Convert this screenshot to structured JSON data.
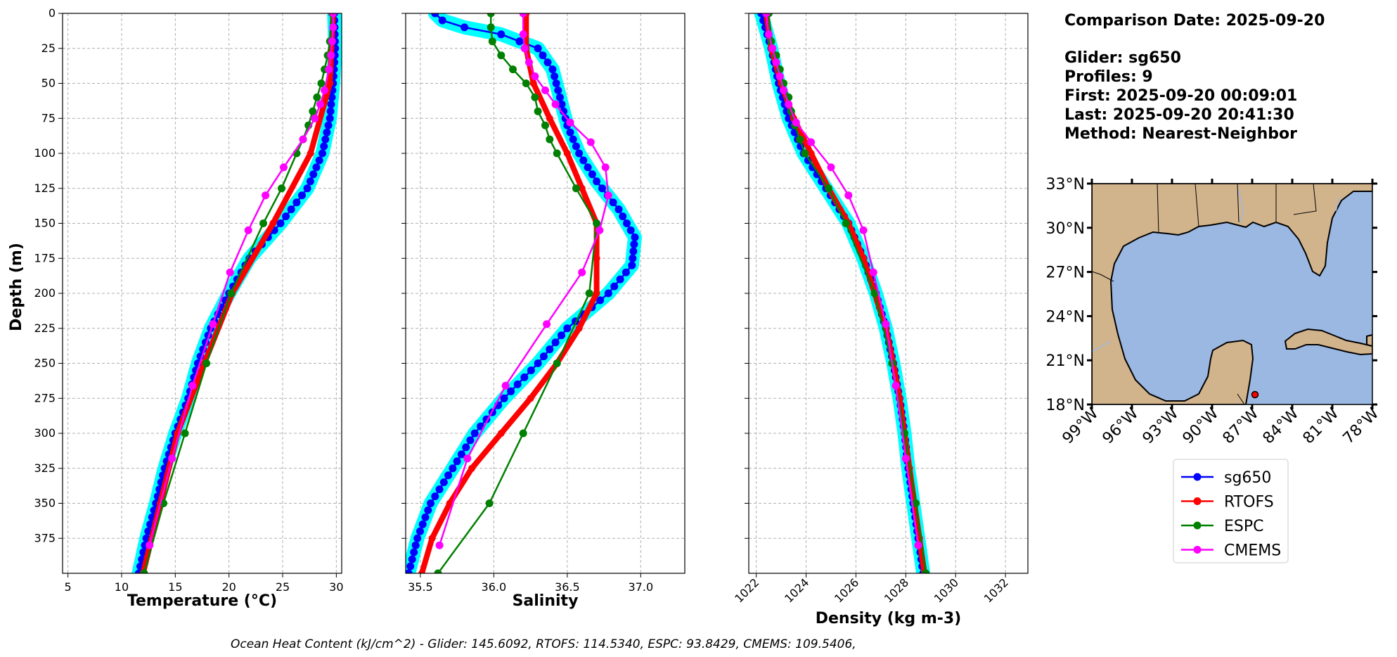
{
  "info": {
    "lines": [
      "Comparison Date: 2025-09-20",
      "Glider: sg650",
      "Profiles: 9",
      "First: 2025-09-20 00:09:01",
      "Last: 2025-09-20 20:41:30",
      "Method: Nearest-Neighbor"
    ]
  },
  "footer": "Ocean Heat Content (kJ/cm^2) - Glider: 145.6092,  RTOFS: 114.5340,  ESPC: 93.8429,  CMEMS: 109.5406,",
  "colors": {
    "sg650": "#0000ff",
    "RTOFS": "#ff0000",
    "ESPC": "#008000",
    "CMEMS": "#ff00ff",
    "envelope": "#00ffff",
    "land": "#d2b48c",
    "ocean": "#9bb8e2"
  },
  "legend": [
    "sg650",
    "RTOFS",
    "ESPC",
    "CMEMS"
  ],
  "map": {
    "lat_labels": [
      "33°N",
      "30°N",
      "27°N",
      "24°N",
      "21°N",
      "18°N"
    ],
    "lon_labels": [
      "99°W",
      "96°W",
      "93°W",
      "90°W",
      "87°W",
      "84°W",
      "81°W",
      "78°W"
    ],
    "lat_range": [
      18,
      33
    ],
    "lon_range": [
      -99,
      -78
    ],
    "glider_position": {
      "lon": -87.1,
      "lat": 18.8
    }
  },
  "chart_data": [
    {
      "type": "line",
      "xlabel": "Temperature (°C)",
      "ylabel": "Depth (m)",
      "xlim": [
        4.5,
        30.5
      ],
      "ylim": [
        400,
        0
      ],
      "xticks": [
        5,
        10,
        15,
        20,
        25,
        30
      ],
      "yticks": [
        0,
        25,
        50,
        75,
        100,
        125,
        150,
        175,
        200,
        225,
        250,
        275,
        300,
        325,
        350,
        375
      ],
      "grid": true,
      "series": [
        {
          "name": "sg650",
          "depth": [
            0,
            25,
            50,
            75,
            100,
            125,
            150,
            175,
            200,
            225,
            250,
            275,
            300,
            325,
            350,
            375,
            400
          ],
          "values": [
            29.8,
            29.9,
            29.7,
            29.4,
            28.7,
            27.3,
            24.8,
            21.9,
            20.0,
            18.3,
            17.1,
            16.2,
            15.0,
            14.0,
            13.2,
            12.3,
            11.6
          ]
        },
        {
          "name": "RTOFS",
          "depth": [
            0,
            50,
            100,
            150,
            200,
            250,
            300,
            350,
            400
          ],
          "values": [
            29.7,
            29.4,
            27.6,
            24.1,
            20.3,
            17.7,
            15.2,
            13.6,
            12.0
          ]
        },
        {
          "name": "ESPC",
          "depth": [
            0,
            20,
            30,
            40,
            50,
            60,
            70,
            80,
            90,
            100,
            125,
            150,
            200,
            250,
            300,
            350,
            400
          ],
          "values": [
            29.6,
            29.4,
            29.2,
            28.9,
            28.6,
            28.2,
            27.8,
            27.4,
            26.9,
            26.3,
            24.9,
            23.2,
            20.2,
            17.9,
            15.9,
            13.9,
            12.1
          ]
        },
        {
          "name": "CMEMS",
          "depth": [
            0,
            10,
            20,
            30,
            40,
            55,
            65,
            75,
            90,
            110,
            130,
            155,
            185,
            222,
            266,
            318,
            380
          ],
          "values": [
            29.7,
            29.7,
            29.6,
            29.5,
            29.3,
            28.9,
            28.5,
            28.0,
            26.9,
            25.1,
            23.4,
            21.8,
            20.1,
            18.5,
            16.6,
            14.7,
            12.6
          ]
        }
      ]
    },
    {
      "type": "line",
      "xlabel": "Salinity",
      "xlim": [
        35.4,
        37.3
      ],
      "ylim": [
        400,
        0
      ],
      "xticks": [
        35.5,
        36.0,
        36.5,
        37.0
      ],
      "grid": true,
      "series": [
        {
          "name": "sg650",
          "depth": [
            0,
            5,
            10,
            15,
            25,
            40,
            60,
            80,
            100,
            120,
            140,
            160,
            180,
            200,
            225,
            250,
            275,
            300,
            325,
            350,
            375,
            400
          ],
          "values": [
            35.6,
            35.65,
            35.8,
            36.05,
            36.3,
            36.4,
            36.45,
            36.5,
            36.58,
            36.7,
            36.85,
            36.96,
            36.94,
            36.78,
            36.5,
            36.3,
            36.07,
            35.87,
            35.72,
            35.57,
            35.48,
            35.42
          ]
        },
        {
          "name": "RTOFS",
          "depth": [
            0,
            25,
            50,
            75,
            100,
            125,
            150,
            175,
            200,
            225,
            250,
            275,
            300,
            325,
            350,
            375,
            400
          ],
          "values": [
            36.22,
            36.22,
            36.27,
            36.38,
            36.5,
            36.6,
            36.7,
            36.7,
            36.7,
            36.58,
            36.43,
            36.25,
            36.05,
            35.85,
            35.7,
            35.58,
            35.51
          ]
        },
        {
          "name": "ESPC",
          "depth": [
            0,
            10,
            20,
            30,
            40,
            50,
            60,
            70,
            80,
            90,
            100,
            125,
            150,
            200,
            250,
            300,
            350,
            400
          ],
          "values": [
            35.98,
            35.98,
            35.99,
            36.05,
            36.13,
            36.22,
            36.28,
            36.3,
            36.35,
            36.38,
            36.43,
            36.56,
            36.7,
            36.65,
            36.43,
            36.2,
            35.97,
            35.62
          ]
        },
        {
          "name": "CMEMS",
          "depth": [
            0,
            15,
            25,
            35,
            45,
            55,
            65,
            78,
            92,
            110,
            130,
            155,
            185,
            222,
            266,
            318,
            380
          ],
          "values": [
            36.2,
            36.2,
            36.21,
            36.24,
            36.28,
            36.35,
            36.42,
            36.52,
            36.66,
            36.76,
            36.78,
            36.72,
            36.6,
            36.36,
            36.08,
            35.82,
            35.63
          ]
        }
      ]
    },
    {
      "type": "line",
      "xlabel": "Density (kg m-3)",
      "xlim": [
        1021.7,
        1032.9
      ],
      "ylim": [
        400,
        0
      ],
      "xticks": [
        1022,
        1024,
        1026,
        1028,
        1030,
        1032
      ],
      "grid": true,
      "series": [
        {
          "name": "sg650",
          "depth": [
            0,
            25,
            50,
            75,
            100,
            125,
            150,
            175,
            200,
            225,
            250,
            275,
            300,
            325,
            350,
            375,
            400
          ],
          "values": [
            1022.2,
            1022.6,
            1022.9,
            1023.3,
            1023.9,
            1024.8,
            1025.7,
            1026.3,
            1026.8,
            1027.2,
            1027.5,
            1027.75,
            1027.95,
            1028.1,
            1028.3,
            1028.5,
            1028.7
          ]
        },
        {
          "name": "RTOFS",
          "depth": [
            0,
            25,
            50,
            75,
            100,
            125,
            150,
            175,
            200,
            225,
            250,
            275,
            300,
            325,
            350,
            375,
            400
          ],
          "values": [
            1022.4,
            1022.6,
            1023.0,
            1023.5,
            1024.2,
            1024.9,
            1025.7,
            1026.3,
            1026.75,
            1027.2,
            1027.5,
            1027.75,
            1027.95,
            1028.15,
            1028.35,
            1028.55,
            1028.75
          ]
        },
        {
          "name": "ESPC",
          "depth": [
            0,
            20,
            30,
            40,
            50,
            60,
            70,
            80,
            90,
            100,
            125,
            150,
            200,
            250,
            300,
            350,
            400
          ],
          "values": [
            1022.5,
            1022.6,
            1022.8,
            1022.95,
            1023.1,
            1023.3,
            1023.4,
            1023.55,
            1023.75,
            1023.95,
            1024.9,
            1025.6,
            1026.75,
            1027.45,
            1027.95,
            1028.4,
            1028.8
          ]
        },
        {
          "name": "CMEMS",
          "depth": [
            0,
            15,
            25,
            35,
            45,
            55,
            65,
            78,
            92,
            110,
            130,
            155,
            185,
            222,
            266,
            318,
            380
          ],
          "values": [
            1022.4,
            1022.5,
            1022.65,
            1022.8,
            1022.95,
            1023.1,
            1023.3,
            1023.6,
            1024.2,
            1025.0,
            1025.7,
            1026.3,
            1026.7,
            1027.2,
            1027.6,
            1028.0,
            1028.5
          ]
        }
      ]
    }
  ]
}
